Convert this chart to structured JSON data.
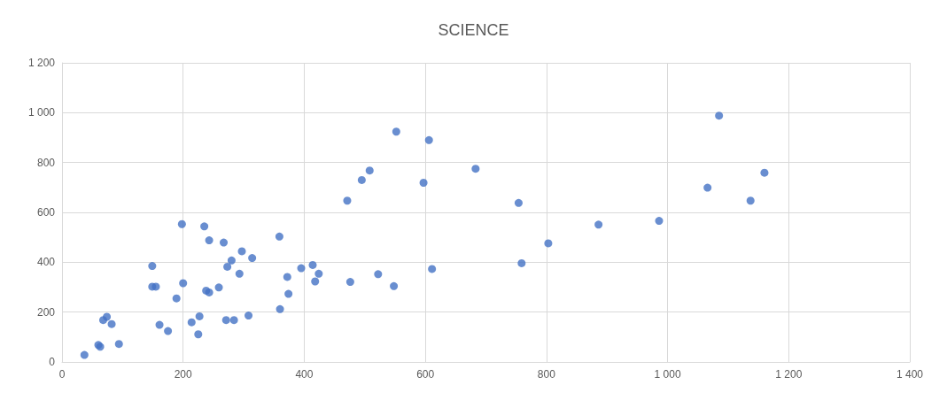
{
  "chart_data": {
    "type": "scatter",
    "title": "SCIENCE",
    "x": [
      37,
      60,
      63,
      68,
      74,
      82,
      94,
      149,
      149,
      155,
      161,
      175,
      189,
      198,
      200,
      214,
      225,
      227,
      235,
      243,
      238,
      243,
      259,
      267,
      271,
      273,
      280,
      284,
      293,
      297,
      308,
      314,
      359,
      360,
      372,
      374,
      395,
      414,
      418,
      424,
      552,
      606,
      508,
      495,
      471,
      597,
      683,
      754,
      803,
      759,
      611,
      548,
      522,
      476,
      886,
      986,
      1085,
      1066,
      1137,
      1160
    ],
    "series": [
      {
        "color": "#4472c4",
        "values": [
          28,
          68,
          61,
          168,
          181,
          152,
          72,
          385,
          302,
          302,
          149,
          124,
          255,
          553,
          316,
          159,
          111,
          183,
          544,
          488,
          286,
          279,
          299,
          479,
          168,
          382,
          407,
          168,
          354,
          444,
          186,
          417,
          503,
          212,
          341,
          273,
          376,
          389,
          323,
          354,
          924,
          890,
          768,
          730,
          647,
          719,
          775,
          638,
          476,
          396,
          373,
          304,
          352,
          321,
          551,
          566,
          988,
          699,
          647,
          759
        ]
      }
    ],
    "xlim": [
      0,
      1400
    ],
    "xticks": [
      0,
      200,
      400,
      600,
      800,
      {
        "value": 1000,
        "label": "1 000"
      },
      {
        "value": 1200,
        "label": "1 200"
      },
      {
        "value": 1400,
        "label": "1 400"
      }
    ],
    "ylim": [
      0,
      1200
    ],
    "yticks": [
      0,
      200,
      400,
      600,
      800,
      {
        "value": 1000,
        "label": "1 000"
      },
      {
        "value": 1200,
        "label": "1 200"
      }
    ],
    "grid": true,
    "marker": "circle"
  }
}
